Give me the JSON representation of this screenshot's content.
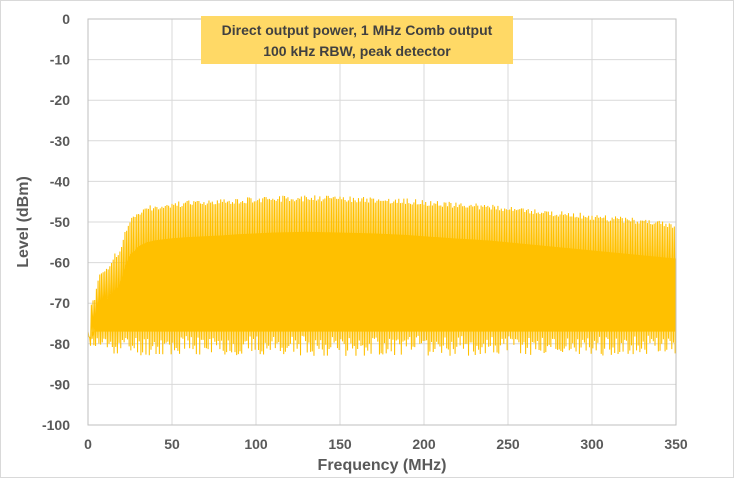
{
  "chart_data": {
    "type": "line",
    "title_lines": [
      "Direct output power, 1 MHz Comb output",
      "100 kHz RBW, peak detector"
    ],
    "xlabel": "Frequency (MHz)",
    "ylabel": "Level (dBm)",
    "xlim": [
      0,
      350
    ],
    "ylim": [
      -100,
      0
    ],
    "xticks": [
      0,
      50,
      100,
      150,
      200,
      250,
      300,
      350
    ],
    "yticks": [
      0,
      -10,
      -20,
      -30,
      -40,
      -50,
      -60,
      -70,
      -80,
      -90,
      -100
    ],
    "grid": true,
    "legend": "none",
    "series_color": "#FFC000",
    "title_box_color": "#FFD966",
    "series": [
      {
        "peak_envelope": {
          "x": [
            0,
            0.5,
            1,
            2,
            4,
            6,
            8,
            10,
            12,
            15,
            18,
            20,
            22,
            25,
            28,
            30,
            35,
            40,
            50,
            60,
            70,
            80,
            90,
            100,
            110,
            120,
            130,
            140,
            150,
            160,
            170,
            180,
            190,
            200,
            210,
            220,
            230,
            240,
            250,
            260,
            270,
            280,
            290,
            300,
            310,
            320,
            330,
            340,
            350
          ],
          "y": [
            -76,
            -60,
            -78,
            -70,
            -68,
            -63,
            -62,
            -62,
            -61,
            -58,
            -57,
            -55,
            -52,
            -49,
            -48,
            -47,
            -46,
            -45.5,
            -45,
            -44.7,
            -44.5,
            -44.3,
            -44,
            -43.8,
            -43.6,
            -43.5,
            -43.4,
            -43.5,
            -43.6,
            -43.7,
            -43.8,
            -44,
            -44.2,
            -44.5,
            -44.8,
            -45.1,
            -45.3,
            -45.6,
            -46,
            -46.4,
            -46.8,
            -47.2,
            -47.6,
            -48,
            -48.4,
            -48.8,
            -49.2,
            -49.6,
            -50
          ]
        },
        "floor_envelope": {
          "x": [
            0,
            2,
            5,
            10,
            20,
            30,
            50,
            100,
            150,
            200,
            250,
            300,
            350
          ],
          "y": [
            -80,
            -81,
            -82,
            -82,
            -83,
            -83,
            -83,
            -83,
            -83,
            -83,
            -83,
            -83,
            -83
          ]
        },
        "approx_upper_floor": -80,
        "spacing_mhz": 1
      }
    ]
  }
}
